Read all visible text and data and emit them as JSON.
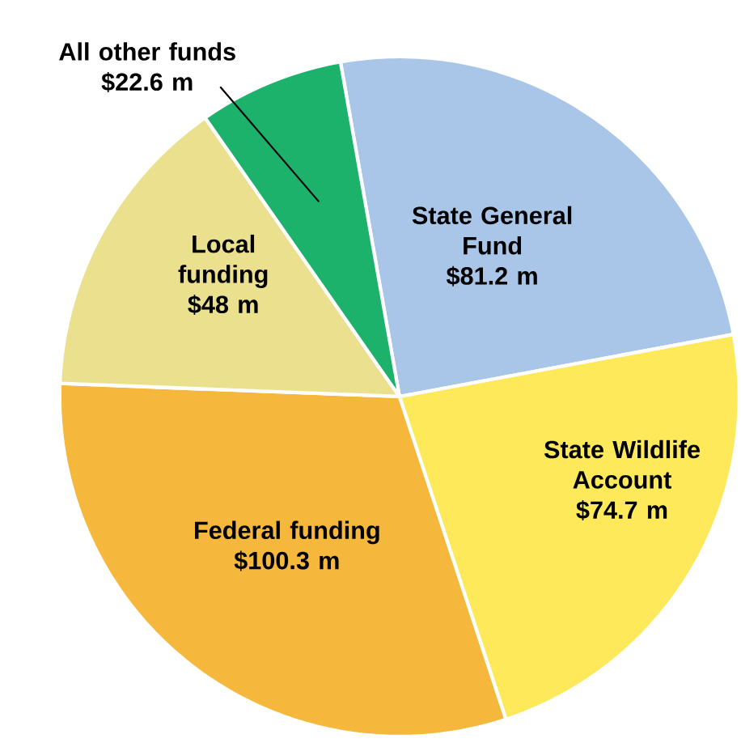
{
  "chart_data": {
    "type": "pie",
    "categories": [
      "State General Fund",
      "State Wildlife Account",
      "Federal funding",
      "Local funding",
      "All other funds"
    ],
    "values": [
      81.2,
      74.7,
      100.3,
      48,
      22.6
    ],
    "value_labels": [
      "$81.2 m",
      "$74.7 m",
      "$100.3 m",
      "$48 m",
      "$22.6 m"
    ],
    "colors": [
      "#a9c6e8",
      "#fde95a",
      "#f5b83d",
      "#ebe08e",
      "#1db26b"
    ]
  }
}
